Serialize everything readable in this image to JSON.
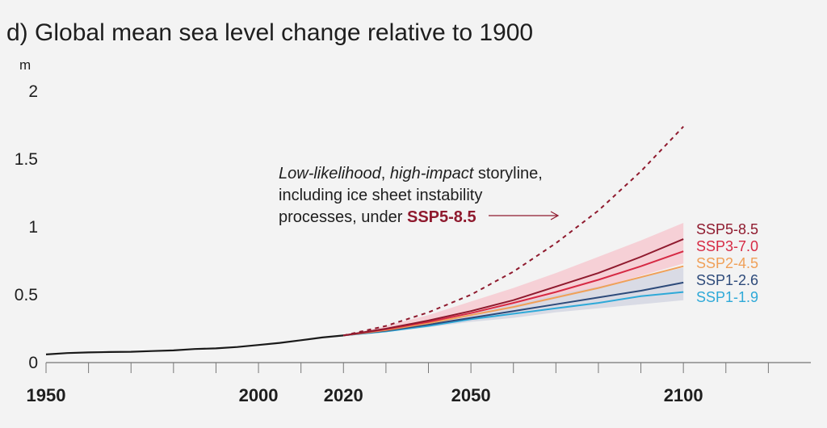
{
  "chart_data": {
    "type": "line",
    "title": "d) Global mean sea level change relative to 1900",
    "ylabel": "m",
    "xlim": [
      1950,
      2130
    ],
    "ylim": [
      0,
      2
    ],
    "y_ticks": [
      "0",
      "0.5",
      "1",
      "1.5",
      "2"
    ],
    "y_tick_values": [
      0,
      0.5,
      1,
      1.5,
      2
    ],
    "x_ticks": [
      "1950",
      "2000",
      "2020",
      "2050",
      "2100"
    ],
    "x_tick_values": [
      1950,
      2000,
      2020,
      2050,
      2100
    ],
    "grid": false,
    "annotation": {
      "italic_1": "Low-likelihood",
      "comma": ",",
      "italic_2": "high-impact",
      "rest_1": " storyline,",
      "line_2": "including ice sheet instability",
      "line_3_prefix": "processes, under ",
      "line_3_key": "SSP5-8.5"
    },
    "historical": {
      "color": "#1a1a1a",
      "x": [
        1950,
        1955,
        1960,
        1965,
        1970,
        1975,
        1980,
        1985,
        1990,
        1995,
        2000,
        2005,
        2010,
        2015,
        2020
      ],
      "y": [
        0.06,
        0.07,
        0.075,
        0.078,
        0.08,
        0.085,
        0.09,
        0.1,
        0.105,
        0.115,
        0.13,
        0.145,
        0.165,
        0.185,
        0.2
      ]
    },
    "storyline": {
      "color": "#8f1a2e",
      "x": [
        2020,
        2030,
        2040,
        2050,
        2060,
        2070,
        2080,
        2090,
        2100
      ],
      "y": [
        0.2,
        0.27,
        0.37,
        0.5,
        0.67,
        0.88,
        1.12,
        1.41,
        1.74
      ]
    },
    "x_projection": [
      2020,
      2030,
      2040,
      2050,
      2060,
      2070,
      2080,
      2090,
      2100
    ],
    "series": [
      {
        "name": "SSP5-8.5",
        "color": "#8f1a2e",
        "values": [
          0.2,
          0.25,
          0.31,
          0.38,
          0.46,
          0.56,
          0.66,
          0.78,
          0.91
        ]
      },
      {
        "name": "SSP3-7.0",
        "color": "#d62a44",
        "values": [
          0.2,
          0.245,
          0.3,
          0.365,
          0.44,
          0.52,
          0.61,
          0.71,
          0.82
        ]
      },
      {
        "name": "SSP2-4.5",
        "color": "#f0a058",
        "values": [
          0.2,
          0.24,
          0.29,
          0.35,
          0.41,
          0.48,
          0.55,
          0.63,
          0.71
        ]
      },
      {
        "name": "SSP1-2.6",
        "color": "#2d4a7a",
        "values": [
          0.2,
          0.235,
          0.28,
          0.33,
          0.38,
          0.43,
          0.48,
          0.53,
          0.59
        ]
      },
      {
        "name": "SSP1-1.9",
        "color": "#2ea9d8",
        "values": [
          0.2,
          0.23,
          0.27,
          0.32,
          0.36,
          0.4,
          0.44,
          0.49,
          0.52
        ]
      }
    ],
    "bands": [
      {
        "color": "#f7c4cc",
        "low": [
          0.2,
          0.23,
          0.28,
          0.34,
          0.4,
          0.47,
          0.55,
          0.64,
          0.73
        ],
        "high": [
          0.2,
          0.27,
          0.35,
          0.45,
          0.55,
          0.66,
          0.78,
          0.9,
          1.03
        ]
      },
      {
        "color": "#d0d3e0",
        "low": [
          0.2,
          0.225,
          0.26,
          0.3,
          0.33,
          0.37,
          0.4,
          0.43,
          0.46
        ],
        "high": [
          0.2,
          0.25,
          0.3,
          0.36,
          0.43,
          0.5,
          0.56,
          0.63,
          0.7
        ]
      }
    ]
  }
}
